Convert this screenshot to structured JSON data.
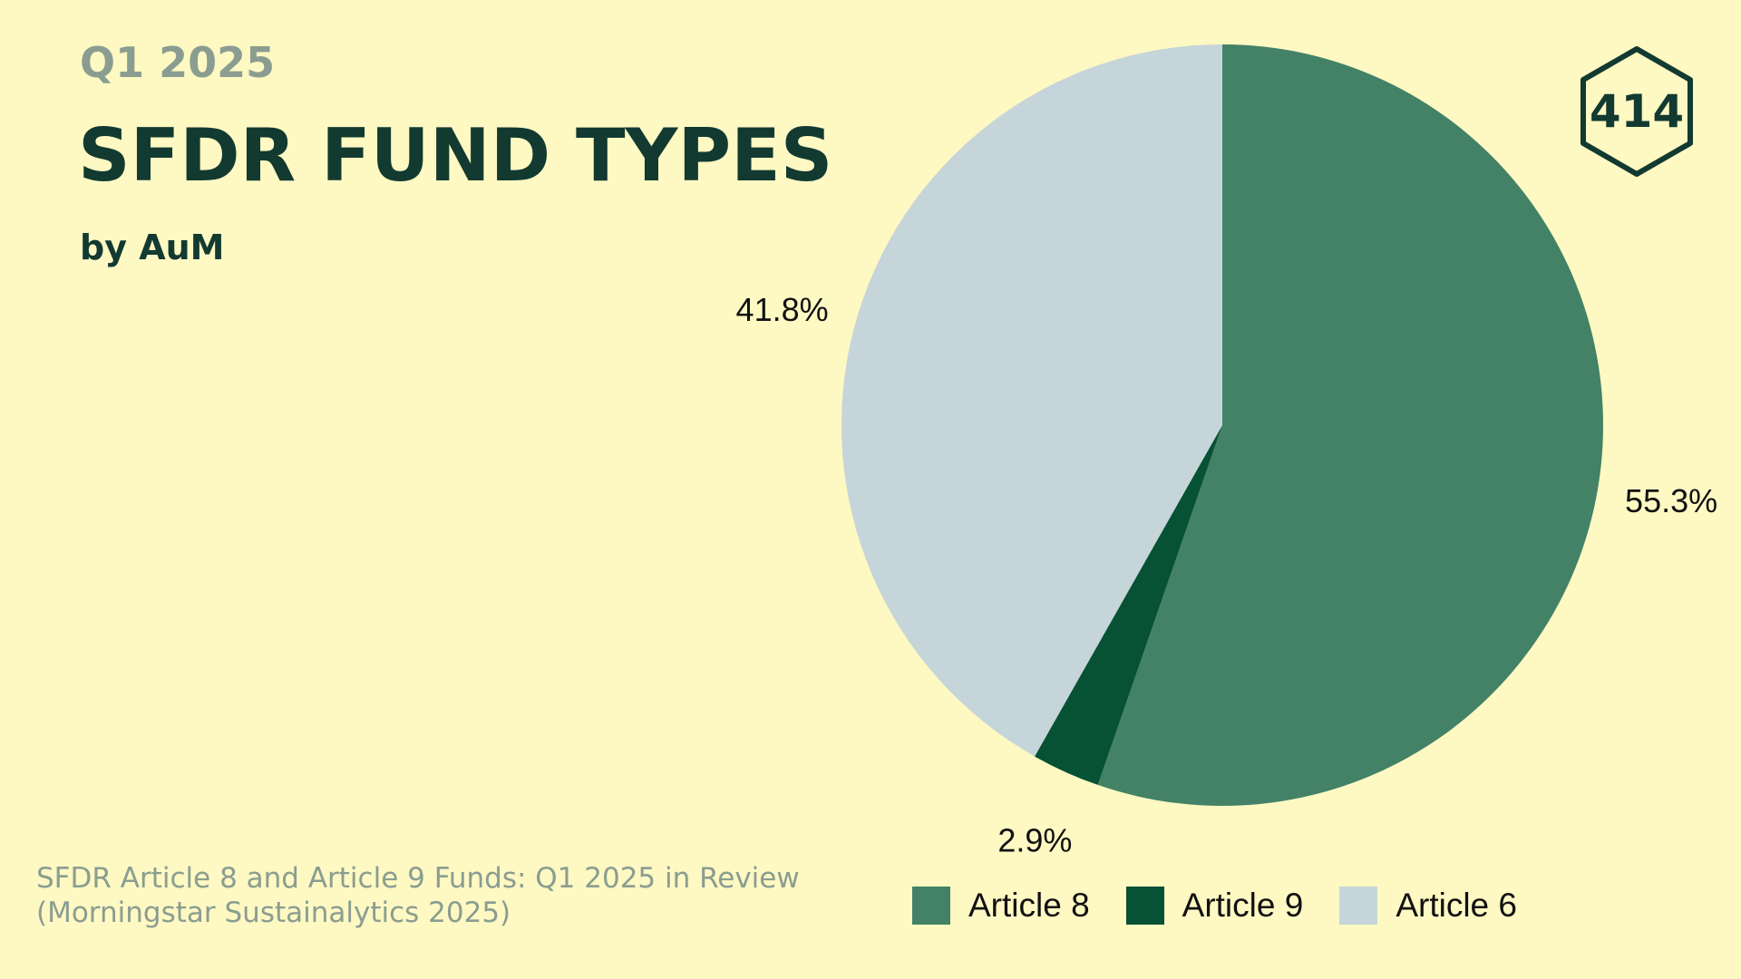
{
  "header": {
    "eyebrow": "Q1 2025",
    "title": "SFDR FUND TYPES",
    "subtitle": "by AuM"
  },
  "source": {
    "line1": "SFDR Article 8 and Article 9 Funds: Q1 2025 in Review",
    "line2": "(Morningstar Sustainalytics 2025)"
  },
  "logo": {
    "text": "414",
    "icon": "hexagon-logo-icon",
    "color": "#123A30"
  },
  "chart_data": {
    "type": "pie",
    "title": "SFDR FUND TYPES",
    "subtitle": "by AuM",
    "legend_position": "bottom",
    "start_angle_deg": 0,
    "direction": "clockwise",
    "slices": [
      {
        "label": "Article 8",
        "value": 55.3,
        "display": "55.3%",
        "color": "#438266"
      },
      {
        "label": "Article 9",
        "value": 2.9,
        "display": "2.9%",
        "color": "#075135"
      },
      {
        "label": "Article 6",
        "value": 41.8,
        "display": "41.8%",
        "color": "#C5D5DA"
      }
    ]
  }
}
